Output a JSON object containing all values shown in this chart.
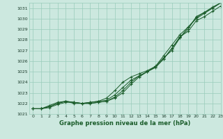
{
  "xlabel": "Graphe pression niveau de la mer (hPa)",
  "xlim": [
    -0.5,
    23
  ],
  "ylim": [
    1021,
    1031.5
  ],
  "yticks": [
    1021,
    1022,
    1023,
    1024,
    1025,
    1026,
    1027,
    1028,
    1029,
    1030,
    1031
  ],
  "xticks": [
    0,
    1,
    2,
    3,
    4,
    5,
    6,
    7,
    8,
    9,
    10,
    11,
    12,
    13,
    14,
    15,
    16,
    17,
    18,
    19,
    20,
    21,
    22,
    23
  ],
  "bg_color": "#cce8df",
  "grid_color": "#99ccbb",
  "line_color": "#1a5c2a",
  "series1": [
    1021.5,
    1021.5,
    1021.6,
    1021.9,
    1022.1,
    1022.1,
    1022.0,
    1022.1,
    1022.2,
    1022.5,
    1023.2,
    1024.0,
    1024.5,
    1024.8,
    1025.1,
    1025.5,
    1026.3,
    1027.0,
    1028.2,
    1029.0,
    1030.2,
    1030.6,
    1031.0,
    1031.5
  ],
  "series2": [
    1021.5,
    1021.5,
    1021.7,
    1022.0,
    1022.2,
    1022.1,
    1022.0,
    1022.1,
    1022.2,
    1022.3,
    1022.8,
    1023.5,
    1024.2,
    1024.6,
    1025.0,
    1025.4,
    1026.2,
    1027.2,
    1028.2,
    1029.2,
    1030.0,
    1030.5,
    1031.0,
    1031.5
  ],
  "series3": [
    1021.5,
    1021.5,
    1021.7,
    1022.0,
    1022.2,
    1022.0,
    1022.0,
    1022.0,
    1022.1,
    1022.2,
    1022.5,
    1023.0,
    1023.8,
    1024.5,
    1025.0,
    1025.4,
    1026.2,
    1027.2,
    1028.3,
    1028.8,
    1029.8,
    1030.2,
    1030.7,
    1031.2
  ],
  "series4": [
    1021.5,
    1021.5,
    1021.8,
    1022.1,
    1022.2,
    1022.1,
    1022.0,
    1022.0,
    1022.1,
    1022.2,
    1022.6,
    1023.2,
    1024.0,
    1024.6,
    1025.0,
    1025.5,
    1026.5,
    1027.5,
    1028.5,
    1029.2,
    1030.1,
    1030.6,
    1031.1,
    1031.5
  ]
}
